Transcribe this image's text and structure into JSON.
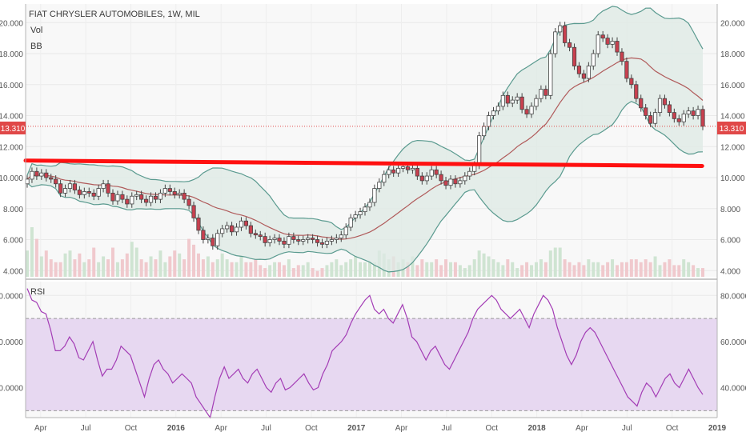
{
  "header": {
    "symbol_line": "FIAT CHRYSLER AUTOMOBILES, 1W, MIL",
    "vol_label": "Vol",
    "bb_label": "BB",
    "rsi_label": "RSI"
  },
  "last_price_label": "13.310",
  "colors": {
    "up_candle": "#ffffff",
    "down_candle": "#c8404f",
    "bb_band": "#5a9a8f",
    "bb_fill": "#dde9e4",
    "bb_basis": "#b05a5a",
    "trendline": "#ff1010",
    "rsi_line": "#a33cb5",
    "rsi_band": "#e7d8f1",
    "price_tag": "#e04848",
    "vol_up": "#cfe4d2",
    "vol_down": "#f0c9cd"
  },
  "chart_data": [
    {
      "type": "candlestick",
      "title": "FIAT CHRYSLER AUTOMOBILES, 1W, MIL",
      "y_ticks": [
        "4.000",
        "6.000",
        "8.000",
        "10.000",
        "12.000",
        "14.000",
        "16.000",
        "18.000",
        "20.000"
      ],
      "ylim": [
        3.6,
        21.2
      ],
      "x_ticks": [
        "Apr",
        "Jul",
        "Oct",
        "2016",
        "Apr",
        "Jul",
        "Oct",
        "2017",
        "Apr",
        "Jul",
        "Oct",
        "2018",
        "Apr",
        "Jul",
        "Oct",
        "2019"
      ],
      "x_range": [
        "2015-03",
        "2019-01"
      ],
      "last_price": 13.31,
      "overlays": [
        "Vol",
        "BB"
      ],
      "trendline": {
        "from": {
          "x": "2015-03",
          "y": 11.1
        },
        "to": {
          "x": "2018-12",
          "y": 10.75
        }
      },
      "close_series": [
        9.9,
        10.4,
        10.1,
        10.3,
        10.0,
        9.9,
        9.6,
        9.0,
        9.3,
        9.6,
        9.2,
        8.9,
        9.1,
        9.0,
        8.8,
        9.3,
        9.6,
        9.0,
        8.5,
        8.9,
        8.6,
        8.3,
        8.8,
        8.9,
        8.6,
        8.4,
        8.8,
        8.6,
        9.0,
        9.3,
        9.1,
        8.9,
        9.0,
        8.6,
        8.2,
        7.4,
        6.6,
        6.0,
        6.1,
        5.6,
        6.4,
        6.7,
        6.9,
        6.5,
        6.8,
        7.2,
        6.9,
        6.4,
        6.3,
        6.2,
        5.8,
        6.0,
        6.1,
        5.9,
        5.7,
        6.2,
        6.0,
        5.9,
        6.0,
        6.1,
        6.0,
        5.8,
        5.7,
        5.9,
        6.0,
        6.1,
        6.3,
        6.8,
        7.4,
        7.6,
        7.8,
        8.1,
        8.4,
        9.3,
        9.7,
        10.2,
        10.5,
        10.3,
        10.6,
        10.7,
        10.5,
        10.6,
        10.1,
        9.8,
        10.1,
        10.5,
        10.2,
        9.8,
        9.5,
        9.9,
        9.6,
        9.8,
        10.1,
        10.4,
        10.8,
        12.7,
        13.3,
        14.0,
        14.3,
        14.6,
        15.3,
        14.8,
        15.0,
        15.2,
        14.4,
        14.1,
        14.6,
        15.1,
        15.7,
        15.3,
        18.0,
        19.4,
        19.8,
        18.7,
        18.4,
        17.2,
        16.7,
        16.4,
        17.2,
        18.0,
        19.2,
        19.0,
        18.6,
        18.8,
        18.1,
        17.5,
        16.4,
        16.0,
        15.1,
        14.5,
        14.0,
        13.5,
        14.2,
        15.1,
        14.7,
        14.2,
        13.8,
        13.6,
        14.1,
        14.3,
        14.0,
        14.4,
        13.31
      ],
      "volume_series": [
        9,
        17,
        13,
        7,
        9,
        6,
        5,
        5,
        8,
        9,
        6,
        8,
        5,
        6,
        10,
        5,
        7,
        6,
        10,
        5,
        6,
        8,
        12,
        10,
        6,
        5,
        7,
        6,
        9,
        5,
        7,
        9,
        8,
        6,
        13,
        11,
        8,
        6,
        7,
        5,
        6,
        8,
        6,
        5,
        5,
        7,
        5,
        5,
        6,
        4,
        3,
        4,
        5,
        5,
        4,
        6,
        3,
        4,
        4,
        5,
        3,
        2,
        3,
        4,
        5,
        6,
        4,
        5,
        6,
        7,
        5,
        5,
        5,
        5,
        9,
        8,
        6,
        7,
        5,
        6,
        5,
        7,
        4,
        6,
        5,
        5,
        6,
        4,
        6,
        5,
        5,
        4,
        3,
        4,
        6,
        9,
        8,
        7,
        6,
        5,
        4,
        6,
        5,
        3,
        4,
        5,
        4,
        5,
        6,
        5,
        9,
        10,
        10,
        6,
        5,
        4,
        5,
        4,
        6,
        5,
        5,
        4,
        5,
        6,
        4,
        5,
        5,
        6,
        6,
        5,
        6,
        5,
        7,
        4,
        5,
        6,
        4,
        4,
        6,
        5,
        4,
        3,
        3
      ]
    },
    {
      "type": "line",
      "title": "RSI",
      "y_ticks": [
        "40.0000",
        "60.0000",
        "80.0000"
      ],
      "ylim": [
        27,
        86
      ],
      "band": [
        30,
        70
      ],
      "x_range": [
        "2015-03",
        "2019-01"
      ],
      "values": [
        83.0,
        78.0,
        77.0,
        73.0,
        72.0,
        65.0,
        56.0,
        56.0,
        58.0,
        62.0,
        59.0,
        53.0,
        52.0,
        56.0,
        60.0,
        52.0,
        45.0,
        48.0,
        48.0,
        52.0,
        58.0,
        56.0,
        54.0,
        48.0,
        42.0,
        36.0,
        44.0,
        50.0,
        52.0,
        48.0,
        46.0,
        42.0,
        44.0,
        46.0,
        44.0,
        42.0,
        36.0,
        33.0,
        30.0,
        27.0,
        36.0,
        44.0,
        49.0,
        44.0,
        46.0,
        48.0,
        44.0,
        42.0,
        46.0,
        48.0,
        44.0,
        40.0,
        38.0,
        42.0,
        44.0,
        39.0,
        40.0,
        42.0,
        44.0,
        46.0,
        42.0,
        39.0,
        40.0,
        46.0,
        50.0,
        56.0,
        58.0,
        60.0,
        63.0,
        68.0,
        72.0,
        75.0,
        78.0,
        80.0,
        74.0,
        72.0,
        74.0,
        70.0,
        68.0,
        72.0,
        76.0,
        70.0,
        62.0,
        60.0,
        56.0,
        52.0,
        56.0,
        58.0,
        54.0,
        50.0,
        48.0,
        52.0,
        56.0,
        60.0,
        64.0,
        70.0,
        74.0,
        76.0,
        78.0,
        80.0,
        78.0,
        74.0,
        72.0,
        70.0,
        72.0,
        74.0,
        70.0,
        66.0,
        72.0,
        76.0,
        80.0,
        78.0,
        74.0,
        66.0,
        60.0,
        54.0,
        50.0,
        54.0,
        60.0,
        64.0,
        66.0,
        64.0,
        60.0,
        56.0,
        52.0,
        48.0,
        44.0,
        40.0,
        36.0,
        34.0,
        32.0,
        38.0,
        42.0,
        40.0,
        36.0,
        40.0,
        44.0,
        46.0,
        42.0,
        40.0,
        44.0,
        48.0,
        44.0,
        40.0,
        37.0
      ]
    }
  ]
}
